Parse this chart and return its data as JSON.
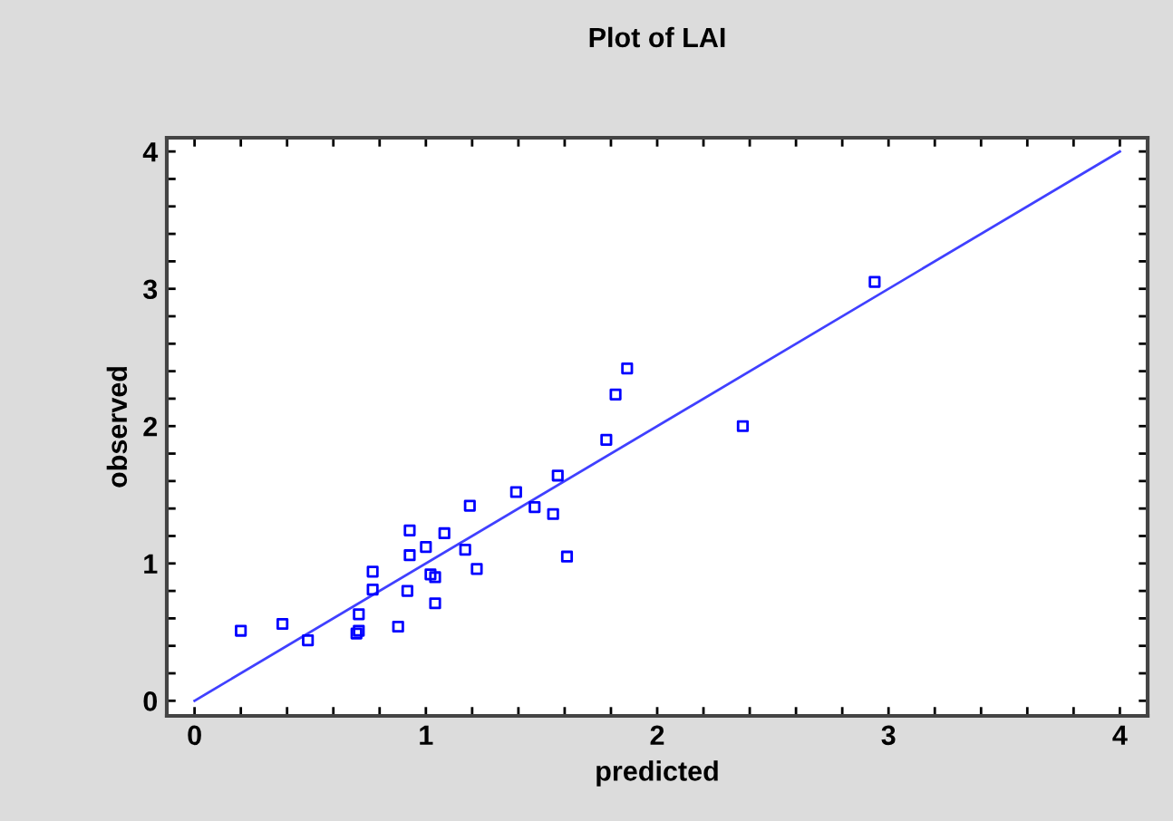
{
  "chart_data": {
    "type": "scatter",
    "title": "Plot of LAI",
    "xlabel": "predicted",
    "ylabel": "observed",
    "xlim": [
      -0.12,
      4.12
    ],
    "ylim": [
      -0.11,
      4.1
    ],
    "xticks": [
      0,
      {
        "value": 0.2,
        "label": null
      },
      {
        "value": 0.4,
        "label": null
      },
      {
        "value": 0.6,
        "label": null
      },
      {
        "value": 0.8,
        "label": null
      },
      1,
      {
        "value": 1.2,
        "label": null
      },
      {
        "value": 1.4,
        "label": null
      },
      {
        "value": 1.6,
        "label": null
      },
      {
        "value": 1.8,
        "label": null
      },
      2,
      {
        "value": 2.2,
        "label": null
      },
      {
        "value": 2.4,
        "label": null
      },
      {
        "value": 2.6,
        "label": null
      },
      {
        "value": 2.8,
        "label": null
      },
      3,
      {
        "value": 3.2,
        "label": null
      },
      {
        "value": 3.4,
        "label": null
      },
      {
        "value": 3.6,
        "label": null
      },
      {
        "value": 3.8,
        "label": null
      },
      4
    ],
    "yticks": [
      0,
      {
        "value": 0.2,
        "label": null
      },
      {
        "value": 0.4,
        "label": null
      },
      {
        "value": 0.6,
        "label": null
      },
      {
        "value": 0.8,
        "label": null
      },
      1,
      {
        "value": 1.2,
        "label": null
      },
      {
        "value": 1.4,
        "label": null
      },
      {
        "value": 1.6,
        "label": null
      },
      {
        "value": 1.8,
        "label": null
      },
      2,
      {
        "value": 2.2,
        "label": null
      },
      {
        "value": 2.4,
        "label": null
      },
      {
        "value": 2.6,
        "label": null
      },
      {
        "value": 2.8,
        "label": null
      },
      3,
      {
        "value": 3.2,
        "label": null
      },
      {
        "value": 3.4,
        "label": null
      },
      {
        "value": 3.6,
        "label": null
      },
      {
        "value": 3.8,
        "label": null
      },
      4
    ],
    "grid": false,
    "series": [
      {
        "marker": "square",
        "color": "#0000ff",
        "x": [
          0.2,
          0.38,
          0.49,
          0.7,
          0.71,
          0.71,
          0.77,
          0.77,
          0.88,
          0.92,
          0.93,
          0.93,
          1.0,
          1.02,
          1.04,
          1.04,
          1.08,
          1.17,
          1.19,
          1.22,
          1.39,
          1.47,
          1.55,
          1.57,
          1.61,
          1.78,
          1.82,
          1.87,
          2.37,
          2.94
        ],
        "values": [
          0.51,
          0.56,
          0.44,
          0.49,
          0.51,
          0.63,
          0.94,
          0.81,
          0.54,
          0.8,
          1.24,
          1.06,
          1.12,
          0.92,
          0.9,
          0.71,
          1.22,
          1.1,
          1.42,
          0.96,
          1.52,
          1.41,
          1.36,
          1.64,
          1.05,
          1.9,
          2.23,
          2.42,
          2.0,
          3.05
        ]
      },
      {
        "type": "line",
        "marker": "none",
        "color": "#4040ff",
        "x": [
          0,
          4
        ],
        "values": [
          0,
          4
        ]
      }
    ]
  }
}
